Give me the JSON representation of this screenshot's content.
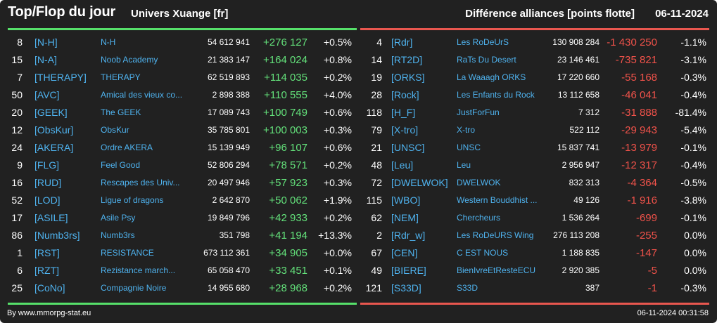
{
  "header": {
    "title": "Top/Flop du jour",
    "subtitle": "Univers Xuange [fr]",
    "right_title": "Différence alliances [points flotte]",
    "date": "06-11-2024"
  },
  "colors": {
    "background": "#212121",
    "positive": "#63e07a",
    "negative": "#f0524a",
    "link": "#4fb3ef",
    "top_bar": "#56e06a",
    "flop_bar": "#e9574f"
  },
  "chart_data": [
    {
      "type": "table",
      "title": "Top",
      "columns": [
        "rank",
        "tag",
        "name",
        "points",
        "diff",
        "pct"
      ],
      "rows": [
        {
          "rank": "8",
          "tag": "[N-H]",
          "name": "N-H",
          "points": "54 612 941",
          "diff": "+276 127",
          "pct": "+0.5%"
        },
        {
          "rank": "15",
          "tag": "[N-A]",
          "name": "Noob Academy",
          "points": "21 383 147",
          "diff": "+164 024",
          "pct": "+0.8%"
        },
        {
          "rank": "7",
          "tag": "[THERAPY]",
          "name": "THERAPY",
          "points": "62 519 893",
          "diff": "+114 035",
          "pct": "+0.2%"
        },
        {
          "rank": "50",
          "tag": "[AVC]",
          "name": "Amical des vieux co...",
          "points": "2 898 388",
          "diff": "+110 555",
          "pct": "+4.0%"
        },
        {
          "rank": "20",
          "tag": "[GEEK]",
          "name": "The GEEK",
          "points": "17 089 743",
          "diff": "+100 749",
          "pct": "+0.6%"
        },
        {
          "rank": "12",
          "tag": "[ObsKur]",
          "name": "ObsKur",
          "points": "35 785 801",
          "diff": "+100 003",
          "pct": "+0.3%"
        },
        {
          "rank": "24",
          "tag": "[AKERA]",
          "name": "Ordre AKERA",
          "points": "15 139 949",
          "diff": "+96 107",
          "pct": "+0.6%"
        },
        {
          "rank": "9",
          "tag": "[FLG]",
          "name": "Feel Good",
          "points": "52 806 294",
          "diff": "+78 571",
          "pct": "+0.2%"
        },
        {
          "rank": "16",
          "tag": "[RUD]",
          "name": "Rescapes des Univ...",
          "points": "20 497 946",
          "diff": "+57 923",
          "pct": "+0.3%"
        },
        {
          "rank": "52",
          "tag": "[LOD]",
          "name": "Ligue of dragons",
          "points": "2 642 870",
          "diff": "+50 062",
          "pct": "+1.9%"
        },
        {
          "rank": "17",
          "tag": "[ASILE]",
          "name": "Asile Psy",
          "points": "19 849 796",
          "diff": "+42 933",
          "pct": "+0.2%"
        },
        {
          "rank": "86",
          "tag": "[Numb3rs]",
          "name": "Numb3rs",
          "points": "351 798",
          "diff": "+41 194",
          "pct": "+13.3%"
        },
        {
          "rank": "1",
          "tag": "[RST]",
          "name": "RESISTANCE",
          "points": "673 112 361",
          "diff": "+34 905",
          "pct": "+0.0%"
        },
        {
          "rank": "6",
          "tag": "[RZT]",
          "name": "Rezistance march...",
          "points": "65 058 470",
          "diff": "+33 451",
          "pct": "+0.1%"
        },
        {
          "rank": "25",
          "tag": "[CoNo]",
          "name": "Compagnie Noire",
          "points": "14 955 680",
          "diff": "+28 968",
          "pct": "+0.2%"
        }
      ]
    },
    {
      "type": "table",
      "title": "Flop",
      "columns": [
        "rank",
        "tag",
        "name",
        "points",
        "diff",
        "pct"
      ],
      "rows": [
        {
          "rank": "4",
          "tag": "[Rdr]",
          "name": "Les RoDeUrS",
          "points": "130 908 284",
          "diff": "-1 430 250",
          "pct": "-1.1%"
        },
        {
          "rank": "14",
          "tag": "[RT2D]",
          "name": "RaTs Du Desert",
          "points": "23 146 461",
          "diff": "-735 821",
          "pct": "-3.1%"
        },
        {
          "rank": "19",
          "tag": "[ORKS]",
          "name": "La Waaagh ORKS",
          "points": "17 220 660",
          "diff": "-55 168",
          "pct": "-0.3%"
        },
        {
          "rank": "28",
          "tag": "[Rock]",
          "name": "Les Enfants du Rock",
          "points": "13 112 658",
          "diff": "-46 041",
          "pct": "-0.4%"
        },
        {
          "rank": "118",
          "tag": "[H_F]",
          "name": "JustForFun",
          "points": "7 312",
          "diff": "-31 888",
          "pct": "-81.4%"
        },
        {
          "rank": "79",
          "tag": "[X-tro]",
          "name": "X-tro",
          "points": "522 112",
          "diff": "-29 943",
          "pct": "-5.4%"
        },
        {
          "rank": "21",
          "tag": "[UNSC]",
          "name": "UNSC",
          "points": "15 837 741",
          "diff": "-13 979",
          "pct": "-0.1%"
        },
        {
          "rank": "48",
          "tag": "[Leu]",
          "name": "Leu",
          "points": "2 956 947",
          "diff": "-12 317",
          "pct": "-0.4%"
        },
        {
          "rank": "72",
          "tag": "[DWELWOK]",
          "name": "DWELWOK",
          "points": "832 313",
          "diff": "-4 364",
          "pct": "-0.5%"
        },
        {
          "rank": "115",
          "tag": "[WBO]",
          "name": "Western Bouddhist ...",
          "points": "49 126",
          "diff": "-1 916",
          "pct": "-3.8%"
        },
        {
          "rank": "62",
          "tag": "[NEM]",
          "name": "Chercheurs",
          "points": "1 536 264",
          "diff": "-699",
          "pct": "-0.1%"
        },
        {
          "rank": "2",
          "tag": "[Rdr_w]",
          "name": "Les RoDeURS Wing",
          "points": "276 113 208",
          "diff": "-255",
          "pct": "0.0%"
        },
        {
          "rank": "67",
          "tag": "[CEN]",
          "name": "C EST NOUS",
          "points": "1 188 835",
          "diff": "-147",
          "pct": "0.0%"
        },
        {
          "rank": "49",
          "tag": "[BIERE]",
          "name": "BienIvreEtResteECU",
          "points": "2 920 385",
          "diff": "-5",
          "pct": "0.0%"
        },
        {
          "rank": "121",
          "tag": "[S33D]",
          "name": "S33D",
          "points": "387",
          "diff": "-1",
          "pct": "-0.3%"
        }
      ]
    }
  ],
  "footer": {
    "left": "By www.mmorpg-stat.eu",
    "right": "06-11-2024 00:31:58"
  }
}
